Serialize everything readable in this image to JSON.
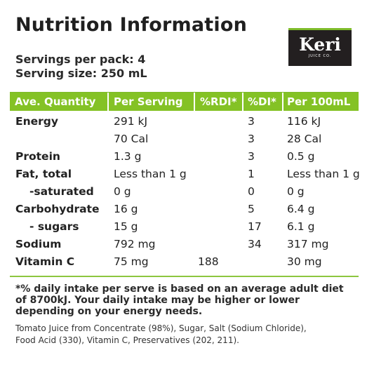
{
  "title": "Nutrition Information",
  "logo": {
    "brand": "Keri",
    "sub": "JUICE CO."
  },
  "servings": {
    "per_pack": "Servings per pack: 4",
    "size": "Serving size: 250 mL"
  },
  "table": {
    "headers": [
      "Ave. Quantity",
      "Per Serving",
      "%RDI*",
      "%DI*",
      "Per 100mL"
    ],
    "rows": [
      [
        "Energy",
        "291 kJ",
        "",
        "3",
        "116 kJ"
      ],
      [
        "",
        "70 Cal",
        "",
        "3",
        "28 Cal"
      ],
      [
        "Protein",
        "1.3 g",
        "",
        "3",
        "0.5 g"
      ],
      [
        "Fat, total",
        "Less than 1 g",
        "",
        "1",
        "Less than 1 g"
      ],
      [
        "-saturated",
        "0 g",
        "",
        "0",
        "0 g"
      ],
      [
        "Carbohydrate",
        "16 g",
        "",
        "5",
        "6.4 g"
      ],
      [
        "- sugars",
        "15 g",
        "",
        "17",
        "6.1 g"
      ],
      [
        "Sodium",
        "792 mg",
        "",
        "34",
        "317 mg"
      ],
      [
        "Vitamin C",
        "75 mg",
        "188",
        "",
        "30 mg"
      ]
    ]
  },
  "footnote": [
    "*% daily intake per serve is based on an average adult diet",
    "of 8700kJ. Your daily intake may be higher or lower",
    "depending on your energy needs."
  ],
  "ingredients": [
    "Tomato Juice from Concentrate (98%), Sugar, Salt (Sodium Chloride),",
    "Food Acid (330), Vitamin C, Preservatives (202, 211)."
  ]
}
